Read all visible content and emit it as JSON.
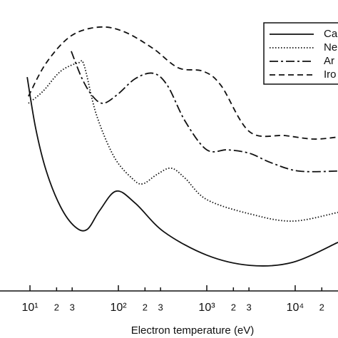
{
  "chart_data": {
    "type": "line",
    "x_label": "Electron temperature (eV)",
    "log_x": true,
    "xlim": [
      4.58,
      30500
    ],
    "ylim": [
      0,
      100
    ],
    "xticks": [
      {
        "value": 10,
        "label": "10¹"
      },
      {
        "value": 20,
        "label": "2"
      },
      {
        "value": 30,
        "label": "3"
      },
      {
        "value": 100,
        "label": "10²"
      },
      {
        "value": 200,
        "label": "2"
      },
      {
        "value": 300,
        "label": "3"
      },
      {
        "value": 1000,
        "label": "10³"
      },
      {
        "value": 2000,
        "label": "2"
      },
      {
        "value": 3000,
        "label": "3"
      },
      {
        "value": 10000,
        "label": "10⁴"
      },
      {
        "value": 20000,
        "label": "2"
      }
    ],
    "legend": "top-right",
    "series": [
      {
        "name": "Ca",
        "color": "#111111",
        "dash": "solid",
        "x": [
          9.3,
          11.6,
          15.3,
          22.2,
          32.2,
          44.2,
          61.6,
          94.6,
          156,
          328,
          1000,
          3050,
          9290,
          30500
        ],
        "values": [
          73.5,
          55.9,
          41.2,
          28.9,
          22.1,
          21.1,
          27.7,
          34.3,
          30.1,
          20.3,
          12.3,
          8.8,
          9.8,
          16.7
        ]
      },
      {
        "name": "Ne",
        "color": "#111111",
        "dash": "dotted",
        "x": [
          9.6,
          14.0,
          22.2,
          35.3,
          41.0,
          56.1,
          89.4,
          143,
          188,
          272,
          395,
          570,
          1000,
          3050,
          9290,
          30500
        ],
        "values": [
          64.5,
          68.6,
          75.5,
          78.4,
          77.5,
          60.8,
          46.1,
          38.7,
          36.8,
          40.0,
          42.2,
          38.7,
          31.4,
          26.5,
          24.0,
          27.0
        ]
      },
      {
        "name": "Ar",
        "color": "#111111",
        "dash": "dashdot",
        "x": [
          29.3,
          38.8,
          51.3,
          67.7,
          98.4,
          156,
          248,
          359,
          570,
          1000,
          1730,
          3050,
          5300,
          11000,
          30500
        ],
        "values": [
          82.4,
          73.0,
          66.9,
          64.5,
          67.6,
          73.0,
          74.8,
          70.6,
          58.3,
          48.5,
          48.5,
          47.3,
          44.1,
          41.2,
          41.2
        ]
      },
      {
        "name": "Iro",
        "color": "#111111",
        "dash": "dashed",
        "x": [
          9.6,
          15.3,
          29.3,
          61.6,
          118,
          248,
          475,
          910,
          1450,
          3050,
          7700,
          16200,
          30500
        ],
        "values": [
          66.9,
          78.4,
          87.7,
          90.7,
          89.0,
          83.3,
          76.7,
          75.5,
          70.6,
          54.7,
          53.4,
          52.2,
          52.9
        ]
      }
    ]
  }
}
